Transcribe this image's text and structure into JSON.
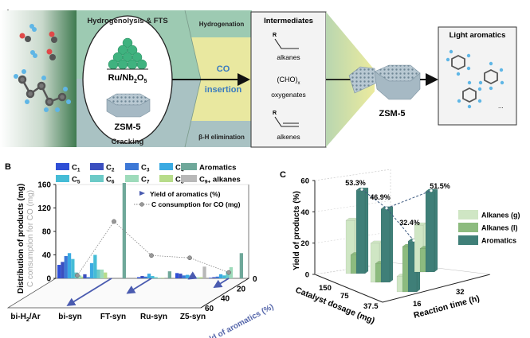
{
  "panel_a": {
    "label": "A",
    "hydrogenolysis": "Hydrogenolysis & FTS",
    "catalyst": "Ru/Nb",
    "catalyst_sub1": "2",
    "catalyst_o": "O",
    "catalyst_sub2": "5",
    "zsm5_inner": "ZSM-5",
    "cracking": "Cracking",
    "hydrogenation": "Hydrogenation",
    "co": "CO",
    "insertion": "insertion",
    "beta_h": "β-H elimination",
    "intermediates_title": "Intermediates",
    "r1": "R",
    "alkanes": "alkanes",
    "cho": "(CHO)",
    "cho_sub": "x",
    "oxygenates": "oxygenates",
    "r2": "R",
    "alkenes": "alkenes",
    "zsm5_outer": "ZSM-5",
    "light_aromatics_title": "Light aromatics",
    "ellipsis": "...",
    "colors": {
      "co_text": "#3a7bbf",
      "green_band": "#9dcab2",
      "grey_band": "#a9c2c3",
      "yellow": "#e9e8a0"
    }
  },
  "chart_data": [
    {
      "panel": "B",
      "type": "bar",
      "title": "",
      "categories": [
        "bi-H2/Ar",
        "bi-syn",
        "FT-syn",
        "Ru-syn",
        "Z5-syn"
      ],
      "category_labels": [
        [
          "bi-H",
          "2",
          "/Ar"
        ],
        [
          "bi-syn"
        ],
        [
          "FT-syn"
        ],
        [
          "Ru-syn"
        ],
        [
          "Z5-syn"
        ]
      ],
      "ylabel": "Distribution of products (mg)",
      "ylabel2": "C consumption for CO (mg)",
      "zlabel": "Yield of aromatics (%)",
      "ylim": [
        0,
        160
      ],
      "yticks": [
        "0",
        "40",
        "80",
        "120",
        "160"
      ],
      "zlim": [
        0,
        60
      ],
      "zticks": [
        "0",
        "20",
        "40",
        "60"
      ],
      "series": [
        {
          "name": "C1",
          "label": [
            "C",
            "1",
            ""
          ],
          "color": "#2f4fd6",
          "values": [
            23,
            0,
            2,
            9,
            1
          ]
        },
        {
          "name": "C2",
          "label": [
            "C",
            "2",
            ""
          ],
          "color": "#3b4fbf",
          "values": [
            28,
            7,
            4,
            8,
            2
          ]
        },
        {
          "name": "C3",
          "label": [
            "C",
            "3",
            ""
          ],
          "color": "#3d78d6",
          "values": [
            38,
            2,
            3,
            5,
            3
          ]
        },
        {
          "name": "C4",
          "label": [
            "C",
            "4",
            ""
          ],
          "color": "#3aaae2",
          "values": [
            43,
            26,
            8,
            6,
            7
          ]
        },
        {
          "name": "Aromatics",
          "label": [
            "Aromatics",
            "",
            ""
          ],
          "color": "#6fa89a",
          "values": [
            0,
            165,
            12,
            0,
            43
          ]
        },
        {
          "name": "C5",
          "label": [
            "C",
            "5",
            ""
          ],
          "color": "#45bcd6",
          "values": [
            33,
            40,
            4,
            5,
            5
          ]
        },
        {
          "name": "C6",
          "label": [
            "C",
            "6",
            ""
          ],
          "color": "#6ccac7",
          "values": [
            10,
            15,
            2,
            3,
            12
          ]
        },
        {
          "name": "C7",
          "label": [
            "C",
            "7",
            ""
          ],
          "color": "#9edbbb",
          "values": [
            5,
            15,
            1,
            2,
            19
          ]
        },
        {
          "name": "C8",
          "label": [
            "C",
            "8",
            ""
          ],
          "color": "#b7dc8a",
          "values": [
            3,
            10,
            1,
            2,
            0
          ]
        },
        {
          "name": "C9+ alkanes",
          "label": [
            "C",
            "9+",
            " alkanes"
          ],
          "color": "#b8b8b8",
          "values": [
            0,
            0,
            0,
            20,
            0
          ]
        }
      ],
      "yield_of_aromatics": {
        "name": "Yield of aromatics (%)",
        "color": "#4a5bb0",
        "values": [
          0,
          55,
          30,
          1,
          18
        ]
      },
      "co_consumption": {
        "name": "C consumption for CO (mg)",
        "color": "#888888",
        "values": [
          5,
          97,
          39,
          35,
          10
        ]
      },
      "legend": "top"
    },
    {
      "panel": "C",
      "type": "bar",
      "title": "",
      "ylabel": "Yield of products (%)",
      "xlabel": "Catalyst dosage (mg)",
      "zlabel": "Reaction time (h)",
      "ylim": [
        0,
        60
      ],
      "yticks": [
        "0",
        "20",
        "40",
        "60"
      ],
      "xticks": [
        "150",
        "75",
        "37.5"
      ],
      "zticks": [
        "16",
        "32"
      ],
      "groups": [
        "150 mg, 16 h",
        "75 mg, 16 h",
        "37.5 mg, 16 h",
        "37.5 mg, 32 h"
      ],
      "series": [
        {
          "name": "Alkanes (g)",
          "color": "#cfe6c4",
          "values": [
            34,
            25,
            10,
            30
          ]
        },
        {
          "name": "Alkanes (l)",
          "color": "#8dbb7f",
          "values": [
            12,
            12,
            29,
            15
          ]
        },
        {
          "name": "Aromatics",
          "color": "#3f7f78",
          "values": [
            53.3,
            46.9,
            32.4,
            51.5
          ]
        }
      ],
      "aromatics_labels": [
        "53.3%",
        "46.9%",
        "32.4%",
        "51.5%"
      ],
      "legend": "right"
    }
  ],
  "labels": {
    "panel_b": "B",
    "panel_c": "C"
  }
}
